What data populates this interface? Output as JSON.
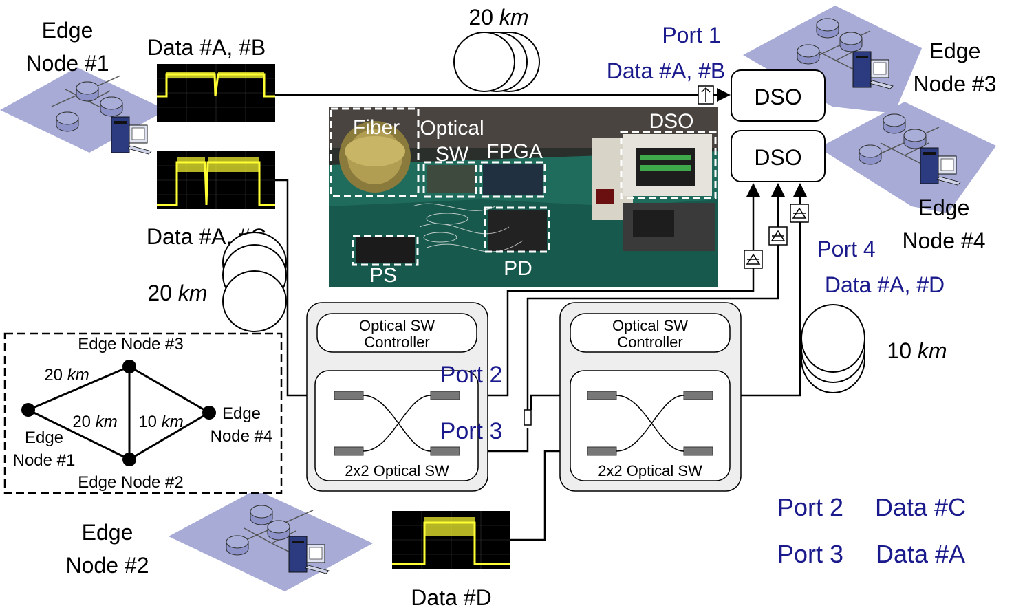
{
  "edge_nodes": {
    "n1": [
      "Edge",
      "Node #1"
    ],
    "n2": [
      "Edge",
      "Node #2"
    ],
    "n3": [
      "Edge",
      "Node #3"
    ],
    "n4": [
      "Edge",
      "Node #4"
    ]
  },
  "data_labels": {
    "ab": "Data #A, #B",
    "ac": "Data #A, #C",
    "d": "Data #D"
  },
  "fibers": {
    "top": [
      "20 ",
      "km"
    ],
    "left": [
      "20 ",
      "km"
    ],
    "right": [
      "10 ",
      "km"
    ]
  },
  "ports": {
    "p1_title": "Port 1",
    "p1_data": "Data #A, #B",
    "p4_title": "Port 4",
    "p4_data": "Data #A, #D",
    "p2": "Port 2",
    "p3": "Port 3"
  },
  "dso": {
    "label": "DSO"
  },
  "switches": {
    "controller": [
      "Optical SW",
      "Controller"
    ],
    "fabric": "2x2 Optical SW"
  },
  "photo_labels": {
    "fiber": "Fiber",
    "optical": "Optical",
    "sw": "SW",
    "fpga": "FPGA",
    "dso": "DSO",
    "ps": "PS",
    "pd": "PD"
  },
  "topology": {
    "node3": "Edge Node #3",
    "node2": "Edge Node #2",
    "node4": [
      "Edge",
      "Node #4"
    ],
    "node1": [
      "Edge",
      "Node #1"
    ],
    "l13": [
      "20 ",
      "km"
    ],
    "l12": [
      "20 ",
      "km"
    ],
    "l32": [
      "10 ",
      "km"
    ]
  },
  "legend": {
    "r1_port": "Port 2",
    "r1_data": "Data #C",
    "r2_port": "Port 3",
    "r2_data": "Data #A"
  },
  "colors": {
    "ink": "#000000",
    "port_text": "#1a1a8c",
    "node_plane": "#a7abd6",
    "trace": "#ffff33",
    "module_fill": "#eeeeee"
  }
}
